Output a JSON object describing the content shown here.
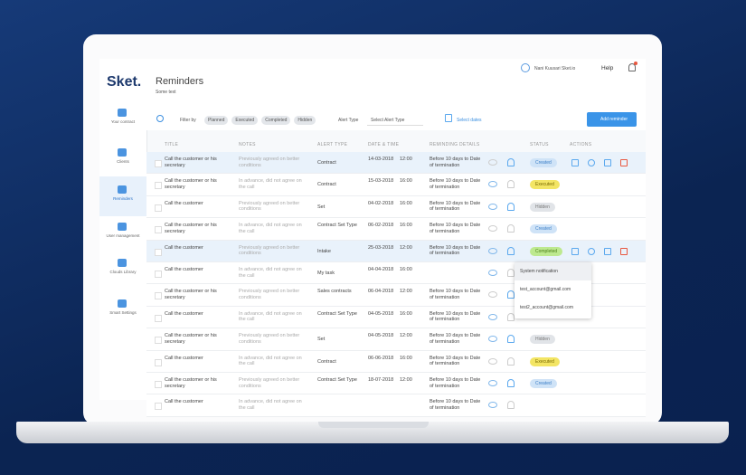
{
  "sidebar": {
    "logo": "Sket.",
    "items": [
      "Your contract",
      "Clients",
      "Reminders",
      "User management",
      "Clouds Library",
      "Smart Settings"
    ]
  },
  "header": {
    "title": "Reminders",
    "subtitle": "Some text",
    "user": "Nani Kuusari Sket.io",
    "help": "Help"
  },
  "filters": {
    "label": "Filter by",
    "chips": [
      "Planned",
      "Executed",
      "Completed",
      "Hidden"
    ],
    "alert_label": "Alert Type",
    "alert_select": "Select Alert Type",
    "dates": "Select dates",
    "add": "Add reminder"
  },
  "table": {
    "columns": [
      "TITLE",
      "NOTES",
      "ALERT TYPE",
      "DATE & TIME",
      "REMINDING DETAILS",
      "STATUS",
      "ACTIONS"
    ],
    "rows": [
      {
        "title": "Call the customer or his secretary",
        "notes": "Previously agreed on better conditions",
        "alert": "Contract",
        "date": "14-03-2018",
        "time": "12:00",
        "details": "Before 10 days to Date of termination",
        "status": "Created"
      },
      {
        "title": "Call the customer or his secretary",
        "notes": "In advance, did not agree on the call",
        "alert": "Contract",
        "date": "15-03-2018",
        "time": "16:00",
        "details": "Before 10 days to Date of termination",
        "status": "Executed"
      },
      {
        "title": "Call the customer",
        "notes": "Previously agreed on better conditions",
        "alert": "Set",
        "date": "04-02-2018",
        "time": "16:00",
        "details": "Before 10 days to Date of termination",
        "status": "Hidden"
      },
      {
        "title": "Call the customer or his secretary",
        "notes": "In advance, did not agree on the call",
        "alert": "Contract Set Type",
        "date": "06-02-2018",
        "time": "16:00",
        "details": "Before 10 days to Date of termination",
        "status": "Created"
      },
      {
        "title": "Call the customer",
        "notes": "Previously agreed on better conditions",
        "alert": "Intake",
        "date": "25-03-2018",
        "time": "12:00",
        "details": "Before 10 days to Date of termination",
        "status": "Completed"
      },
      {
        "title": "Call the customer",
        "notes": "In advance, did not agree on the call",
        "alert": "My task",
        "date": "04-04-2018",
        "time": "16:00"
      },
      {
        "title": "Call the customer or his secretary",
        "notes": "Previously agreed on better conditions",
        "alert": "Sales contracts",
        "date": "06-04-2018",
        "time": "12:00",
        "details": "Before 10 days to Date of termination"
      },
      {
        "title": "Call the customer",
        "notes": "In advance, did not agree on the call",
        "alert": "Contract Set Type",
        "date": "04-05-2018",
        "time": "16:00",
        "details": "Before 10 days to Date of termination"
      },
      {
        "title": "Call the customer or his secretary",
        "notes": "Previously agreed on better conditions",
        "alert": "Set",
        "date": "04-05-2018",
        "time": "12:00",
        "details": "Before 10 days to Date of termination",
        "status": "Hidden"
      },
      {
        "title": "Call the customer",
        "notes": "In advance, did not agree on the call",
        "alert": "Contract",
        "date": "06-06-2018",
        "time": "16:00",
        "details": "Before 10 days to Date of termination",
        "status": "Executed"
      },
      {
        "title": "Call the customer or his secretary",
        "notes": "Previously agreed on better conditions",
        "alert": "Contract Set Type",
        "date": "18-07-2018",
        "time": "12:00",
        "details": "Before 10 days to Date of termination",
        "status": "Created"
      },
      {
        "title": "Call the customer",
        "notes": "In advance, did not agree on the call",
        "details": "Before 10 days to Date of termination"
      }
    ]
  },
  "dropdown": [
    "System notification",
    "test_account@gmail.com",
    "test2_account@gmail.com"
  ]
}
